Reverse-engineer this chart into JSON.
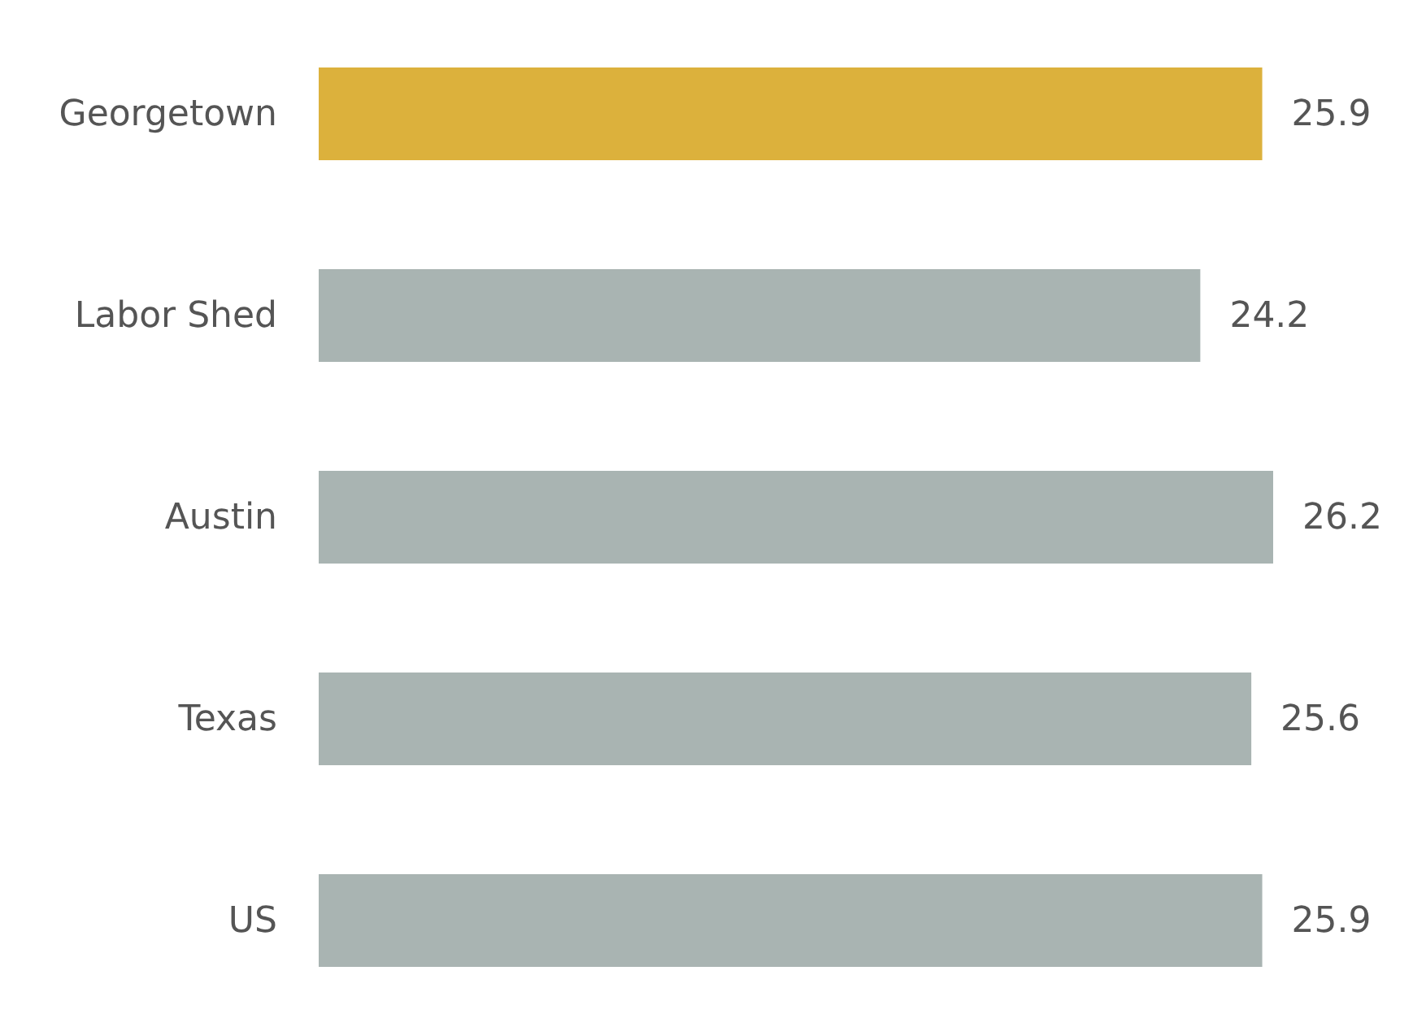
{
  "chart_data": {
    "type": "bar",
    "orientation": "horizontal",
    "categories": [
      "Georgetown",
      "Labor Shed",
      "Austin",
      "Texas",
      "US"
    ],
    "values": [
      25.9,
      24.2,
      26.2,
      25.6,
      25.9
    ],
    "colors": [
      "#dcb13c",
      "#a9b4b2",
      "#a9b4b2",
      "#a9b4b2",
      "#a9b4b2"
    ],
    "data_labels": true
  }
}
